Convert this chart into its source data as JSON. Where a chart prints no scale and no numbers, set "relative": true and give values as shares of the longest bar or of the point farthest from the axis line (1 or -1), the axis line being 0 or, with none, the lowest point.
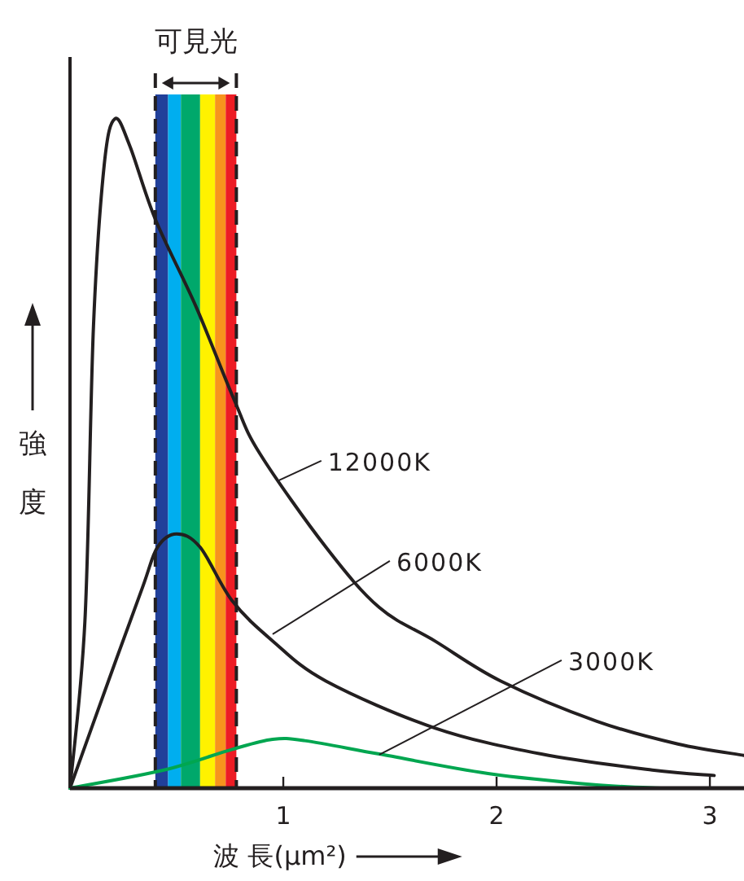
{
  "chart_data": {
    "type": "line",
    "relative": true,
    "title": "可見光",
    "xlabel": "波 長(μm²)",
    "ylabel": "強度",
    "xlim": [
      0,
      3.16
    ],
    "xticks": [
      1,
      2,
      3
    ],
    "series": [
      {
        "color": "#231f20",
        "x": [
          0,
          0.07,
          0.11,
          0.16,
          0.21,
          0.28,
          0.4,
          0.59,
          0.77,
          0.89,
          1.2,
          1.45,
          1.71,
          2.02,
          2.47,
          2.85,
          3.16
        ],
        "values": [
          0,
          0.25,
          0.69,
          0.93,
          1.0,
          0.96,
          0.85,
          0.72,
          0.58,
          0.5,
          0.36,
          0.27,
          0.22,
          0.16,
          0.1,
          0.066,
          0.049
        ]
      },
      {
        "color": "#231f20",
        "x": [
          0,
          0.18,
          0.34,
          0.41,
          0.5,
          0.61,
          0.76,
          0.95,
          1.2,
          1.71,
          2.21,
          2.73,
          3.02
        ],
        "values": [
          0,
          0.16,
          0.3,
          0.36,
          0.38,
          0.36,
          0.28,
          0.22,
          0.16,
          0.09,
          0.051,
          0.027,
          0.019
        ]
      },
      {
        "color": "#00a650",
        "x": [
          0,
          0.44,
          0.76,
          0.95,
          1.1,
          1.45,
          1.96,
          2.47,
          2.78
        ],
        "values": [
          0,
          0.027,
          0.058,
          0.073,
          0.071,
          0.051,
          0.022,
          0.005,
          0
        ]
      }
    ],
    "bands": [
      {
        "axis": "x",
        "from": 0.4,
        "to": 0.46,
        "color": "#21409a"
      },
      {
        "axis": "x",
        "from": 0.46,
        "to": 0.52,
        "color": "#00aeef"
      },
      {
        "axis": "x",
        "from": 0.52,
        "to": 0.61,
        "color": "#00a86b"
      },
      {
        "axis": "x",
        "from": 0.61,
        "to": 0.68,
        "color": "#fff200"
      },
      {
        "axis": "x",
        "from": 0.68,
        "to": 0.73,
        "color": "#f7941d"
      },
      {
        "axis": "x",
        "from": 0.73,
        "to": 0.78,
        "color": "#ed1c24"
      }
    ],
    "ref_lines": [
      {
        "axis": "x",
        "value": 0.4,
        "line_style": "dashed",
        "color": "#231f20"
      },
      {
        "axis": "x",
        "value": 0.78,
        "line_style": "dashed",
        "color": "#231f20"
      }
    ],
    "annotations": [
      {
        "text": "12000K",
        "x": 0.98,
        "y": 0.46
      },
      {
        "text": "6000K",
        "x": 0.95,
        "y": 0.23
      },
      {
        "text": "3000K",
        "x": 1.45,
        "y": 0.05
      }
    ]
  }
}
